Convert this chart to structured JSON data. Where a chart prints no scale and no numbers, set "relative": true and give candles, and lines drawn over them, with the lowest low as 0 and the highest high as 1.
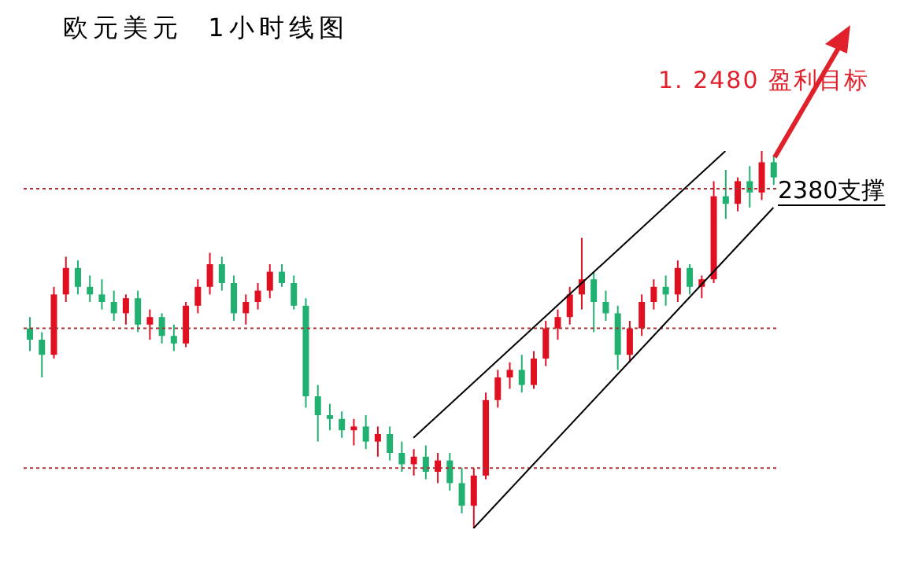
{
  "chart_data": {
    "type": "candlestick",
    "title": "欧元美元  1小时线图",
    "relative": true,
    "categories": [
      null,
      null,
      null,
      null,
      null,
      null,
      null,
      null,
      null,
      null,
      null,
      null,
      null,
      null,
      null,
      null,
      null,
      null,
      null,
      null,
      null,
      null,
      null,
      null,
      null,
      null,
      null,
      null,
      null,
      null,
      null,
      null,
      null,
      null,
      null,
      null,
      null,
      null,
      null,
      null,
      null,
      null,
      null,
      null,
      null,
      null,
      null,
      null,
      null,
      null,
      null,
      null,
      null,
      null,
      null,
      null,
      null,
      null,
      null,
      null,
      null,
      null,
      null
    ],
    "ohlc": [
      [
        0.53,
        0.56,
        0.47,
        0.5
      ],
      [
        0.5,
        0.52,
        0.4,
        0.46
      ],
      [
        0.46,
        0.64,
        0.45,
        0.62
      ],
      [
        0.62,
        0.72,
        0.6,
        0.69
      ],
      [
        0.69,
        0.71,
        0.62,
        0.64
      ],
      [
        0.64,
        0.67,
        0.6,
        0.62
      ],
      [
        0.62,
        0.66,
        0.58,
        0.6
      ],
      [
        0.6,
        0.63,
        0.55,
        0.57
      ],
      [
        0.57,
        0.62,
        0.54,
        0.61
      ],
      [
        0.61,
        0.63,
        0.52,
        0.54
      ],
      [
        0.54,
        0.58,
        0.5,
        0.56
      ],
      [
        0.56,
        0.57,
        0.49,
        0.51
      ],
      [
        0.51,
        0.54,
        0.47,
        0.49
      ],
      [
        0.49,
        0.6,
        0.48,
        0.59
      ],
      [
        0.59,
        0.66,
        0.57,
        0.64
      ],
      [
        0.64,
        0.73,
        0.62,
        0.7
      ],
      [
        0.7,
        0.72,
        0.63,
        0.65
      ],
      [
        0.65,
        0.67,
        0.55,
        0.57
      ],
      [
        0.57,
        0.62,
        0.54,
        0.6
      ],
      [
        0.6,
        0.65,
        0.58,
        0.63
      ],
      [
        0.63,
        0.7,
        0.61,
        0.68
      ],
      [
        0.68,
        0.7,
        0.64,
        0.65
      ],
      [
        0.65,
        0.67,
        0.58,
        0.59
      ],
      [
        0.59,
        0.61,
        0.32,
        0.35
      ],
      [
        0.35,
        0.38,
        0.23,
        0.3
      ],
      [
        0.3,
        0.33,
        0.26,
        0.29
      ],
      [
        0.29,
        0.31,
        0.24,
        0.26
      ],
      [
        0.26,
        0.29,
        0.22,
        0.27
      ],
      [
        0.27,
        0.3,
        0.21,
        0.23
      ],
      [
        0.23,
        0.27,
        0.19,
        0.25
      ],
      [
        0.25,
        0.27,
        0.18,
        0.2
      ],
      [
        0.2,
        0.23,
        0.15,
        0.17
      ],
      [
        0.17,
        0.21,
        0.14,
        0.19
      ],
      [
        0.19,
        0.22,
        0.13,
        0.15
      ],
      [
        0.15,
        0.2,
        0.12,
        0.18
      ],
      [
        0.18,
        0.2,
        0.1,
        0.12
      ],
      [
        0.12,
        0.16,
        0.04,
        0.06
      ],
      [
        0.06,
        0.16,
        0.0,
        0.14
      ],
      [
        0.14,
        0.36,
        0.13,
        0.34
      ],
      [
        0.34,
        0.42,
        0.32,
        0.4
      ],
      [
        0.4,
        0.44,
        0.37,
        0.42
      ],
      [
        0.42,
        0.46,
        0.36,
        0.38
      ],
      [
        0.38,
        0.47,
        0.37,
        0.45
      ],
      [
        0.45,
        0.55,
        0.43,
        0.53
      ],
      [
        0.53,
        0.58,
        0.5,
        0.56
      ],
      [
        0.56,
        0.64,
        0.54,
        0.62
      ],
      [
        0.62,
        0.77,
        0.58,
        0.66
      ],
      [
        0.66,
        0.68,
        0.52,
        0.6
      ],
      [
        0.6,
        0.63,
        0.55,
        0.57
      ],
      [
        0.57,
        0.59,
        0.42,
        0.46
      ],
      [
        0.46,
        0.55,
        0.44,
        0.53
      ],
      [
        0.53,
        0.62,
        0.51,
        0.6
      ],
      [
        0.6,
        0.66,
        0.58,
        0.64
      ],
      [
        0.64,
        0.67,
        0.59,
        0.62
      ],
      [
        0.62,
        0.71,
        0.6,
        0.69
      ],
      [
        0.69,
        0.7,
        0.62,
        0.64
      ],
      [
        0.64,
        0.67,
        0.61,
        0.66
      ],
      [
        0.66,
        0.92,
        0.65,
        0.88
      ],
      [
        0.88,
        0.95,
        0.82,
        0.86
      ],
      [
        0.86,
        0.93,
        0.84,
        0.92
      ],
      [
        0.92,
        0.96,
        0.85,
        0.89
      ],
      [
        0.89,
        1.0,
        0.87,
        0.97
      ],
      [
        0.97,
        0.99,
        0.91,
        0.93
      ]
    ],
    "colors": [
      "#20b070",
      "#20b070",
      "#e01020",
      "#e01020",
      "#20b070",
      "#20b070",
      "#20b070",
      "#20b070",
      "#e01020",
      "#20b070",
      "#e01020",
      "#20b070",
      "#20b070",
      "#e01020",
      "#e01020",
      "#e01020",
      "#20b070",
      "#20b070",
      "#e01020",
      "#e01020",
      "#e01020",
      "#20b070",
      "#20b070",
      "#20b070",
      "#20b070",
      "#20b070",
      "#20b070",
      "#e01020",
      "#20b070",
      "#e01020",
      "#20b070",
      "#20b070",
      "#e01020",
      "#20b070",
      "#e01020",
      "#20b070",
      "#20b070",
      "#e01020",
      "#e01020",
      "#e01020",
      "#e01020",
      "#20b070",
      "#e01020",
      "#e01020",
      "#e01020",
      "#e01020",
      "#e01020",
      "#20b070",
      "#20b070",
      "#20b070",
      "#e01020",
      "#e01020",
      "#e01020",
      "#20b070",
      "#e01020",
      "#20b070",
      "#e01020",
      "#e01020",
      "#20b070",
      "#e01020",
      "#20b070",
      "#e01020",
      "#20b070"
    ],
    "series": [
      {
        "type": "line",
        "color": "#000000",
        "values": [
          null,
          null,
          null,
          null,
          null,
          null,
          null,
          null,
          null,
          null,
          null,
          null,
          null,
          null,
          null,
          null,
          null,
          null,
          null,
          null,
          null,
          null,
          null,
          null,
          null,
          null,
          null,
          null,
          null,
          null,
          null,
          null,
          0.24,
          null,
          null,
          null,
          null,
          null,
          null,
          null,
          null,
          null,
          null,
          null,
          null,
          null,
          null,
          null,
          null,
          null,
          null,
          null,
          null,
          null,
          null,
          null,
          null,
          null,
          1.0,
          null,
          null,
          null,
          null
        ]
      },
      {
        "type": "line",
        "color": "#000000",
        "values": [
          null,
          null,
          null,
          null,
          null,
          null,
          null,
          null,
          null,
          null,
          null,
          null,
          null,
          null,
          null,
          null,
          null,
          null,
          null,
          null,
          null,
          null,
          null,
          null,
          null,
          null,
          null,
          null,
          null,
          null,
          null,
          null,
          null,
          null,
          null,
          null,
          null,
          0.0,
          null,
          null,
          null,
          null,
          null,
          null,
          null,
          null,
          null,
          null,
          null,
          null,
          null,
          null,
          null,
          null,
          null,
          null,
          null,
          null,
          null,
          null,
          null,
          null,
          0.85
        ]
      }
    ],
    "ref_lines": [
      {
        "axis": "y",
        "value": 0.9,
        "color": "#a83232",
        "line_style": "dotted"
      },
      {
        "axis": "y",
        "value": 0.53,
        "color": "#a83232",
        "line_style": "dotted"
      },
      {
        "axis": "y",
        "value": 0.16,
        "color": "#a83232",
        "line_style": "dotted"
      }
    ],
    "annotations": [
      "1. 2480 盈利目标",
      "2380支撑"
    ]
  }
}
